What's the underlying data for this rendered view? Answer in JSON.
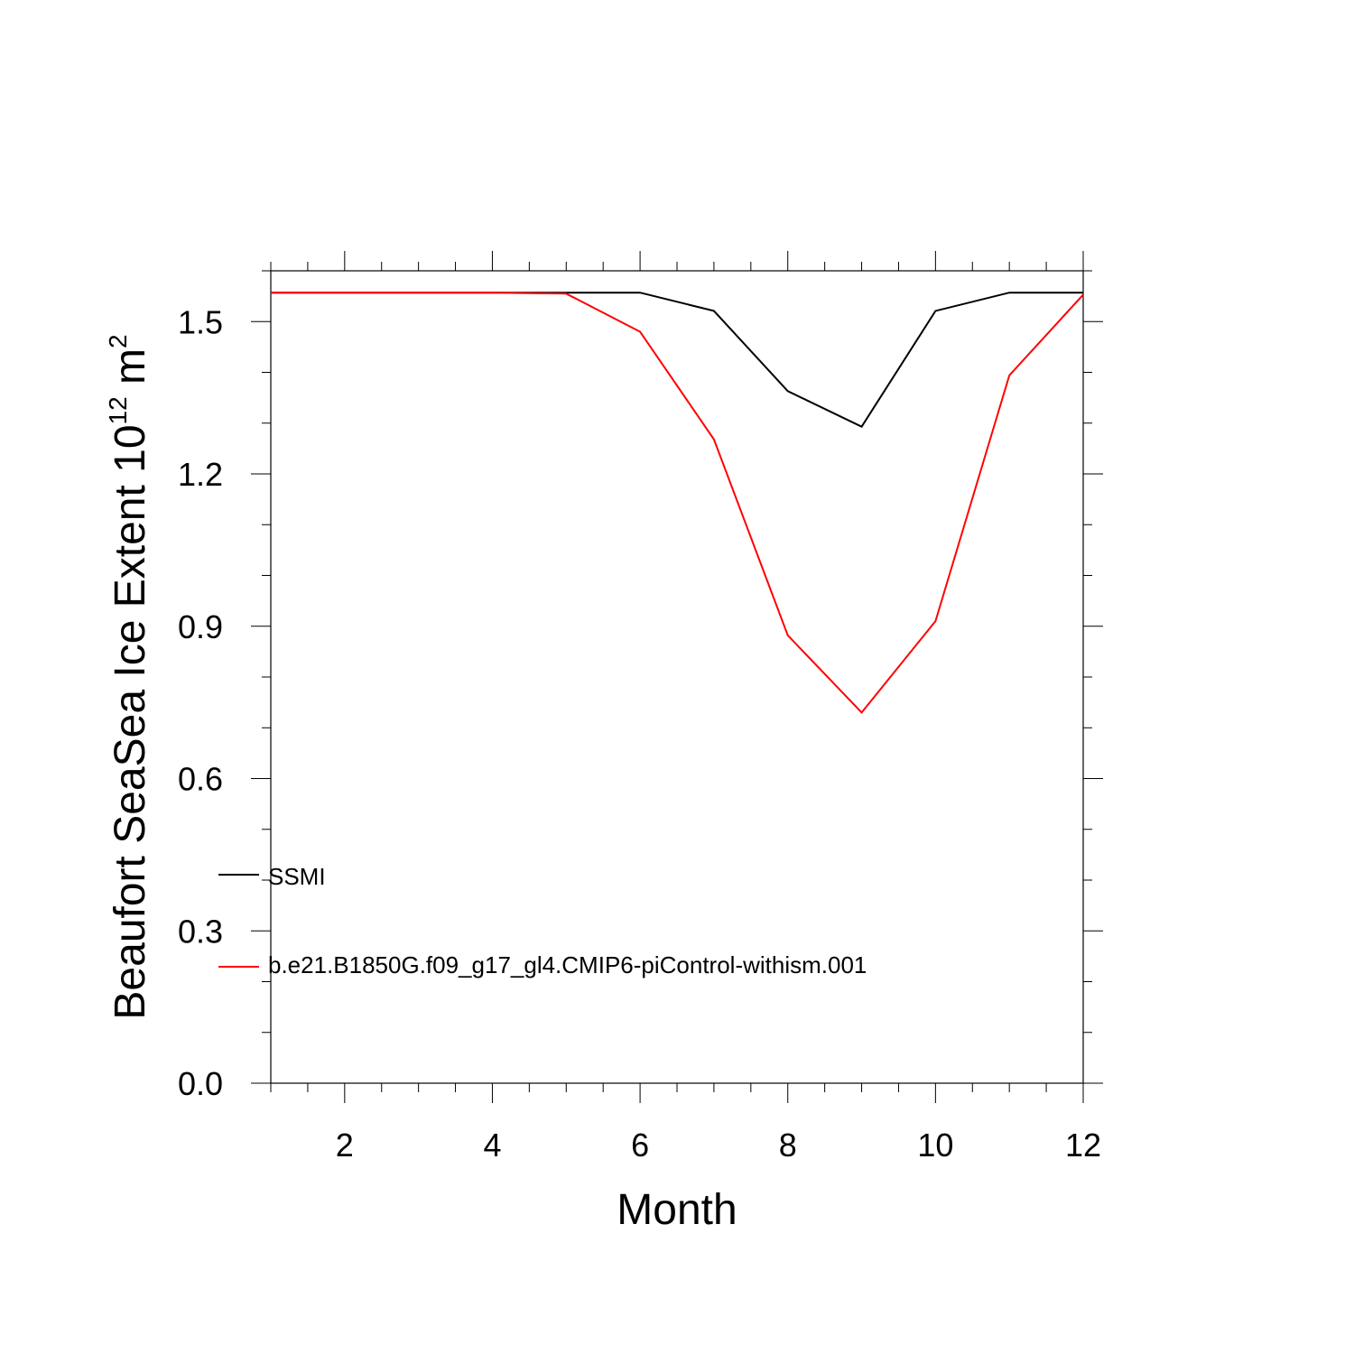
{
  "chart_data": {
    "type": "line",
    "title": "",
    "xlabel": "Month",
    "ylabel": {
      "main": "Beaufort SeaSea Ice Extent 10",
      "exp": "12",
      "unit": " m",
      "unit_exp": "2"
    },
    "xlim": [
      1,
      12
    ],
    "ylim": [
      0,
      1.6
    ],
    "x": [
      1,
      2,
      3,
      4,
      5,
      6,
      7,
      8,
      9,
      10,
      11,
      12
    ],
    "x_ticks": [
      "2",
      "4",
      "6",
      "8",
      "10",
      "12"
    ],
    "x_tick_values": [
      2,
      4,
      6,
      8,
      10,
      12
    ],
    "y_ticks": [
      "0.0",
      "0.3",
      "0.6",
      "0.9",
      "1.2",
      "1.5"
    ],
    "y_tick_values": [
      0,
      0.3,
      0.6,
      0.9,
      1.2,
      1.5
    ],
    "grid": false,
    "legend_position": "bottom-left",
    "series": [
      {
        "name": "SSMI",
        "color": "#000000",
        "values": [
          1.557,
          1.557,
          1.557,
          1.557,
          1.557,
          1.557,
          1.521,
          1.363,
          1.293,
          1.521,
          1.557,
          1.557
        ]
      },
      {
        "name": "b.e21.B1850G.f09_g17_gl4.CMIP6-piControl-withism.001",
        "color": "#ff0000",
        "values": [
          1.557,
          1.557,
          1.557,
          1.557,
          1.555,
          1.48,
          1.268,
          0.882,
          0.73,
          0.91,
          1.394,
          1.553
        ]
      }
    ]
  }
}
